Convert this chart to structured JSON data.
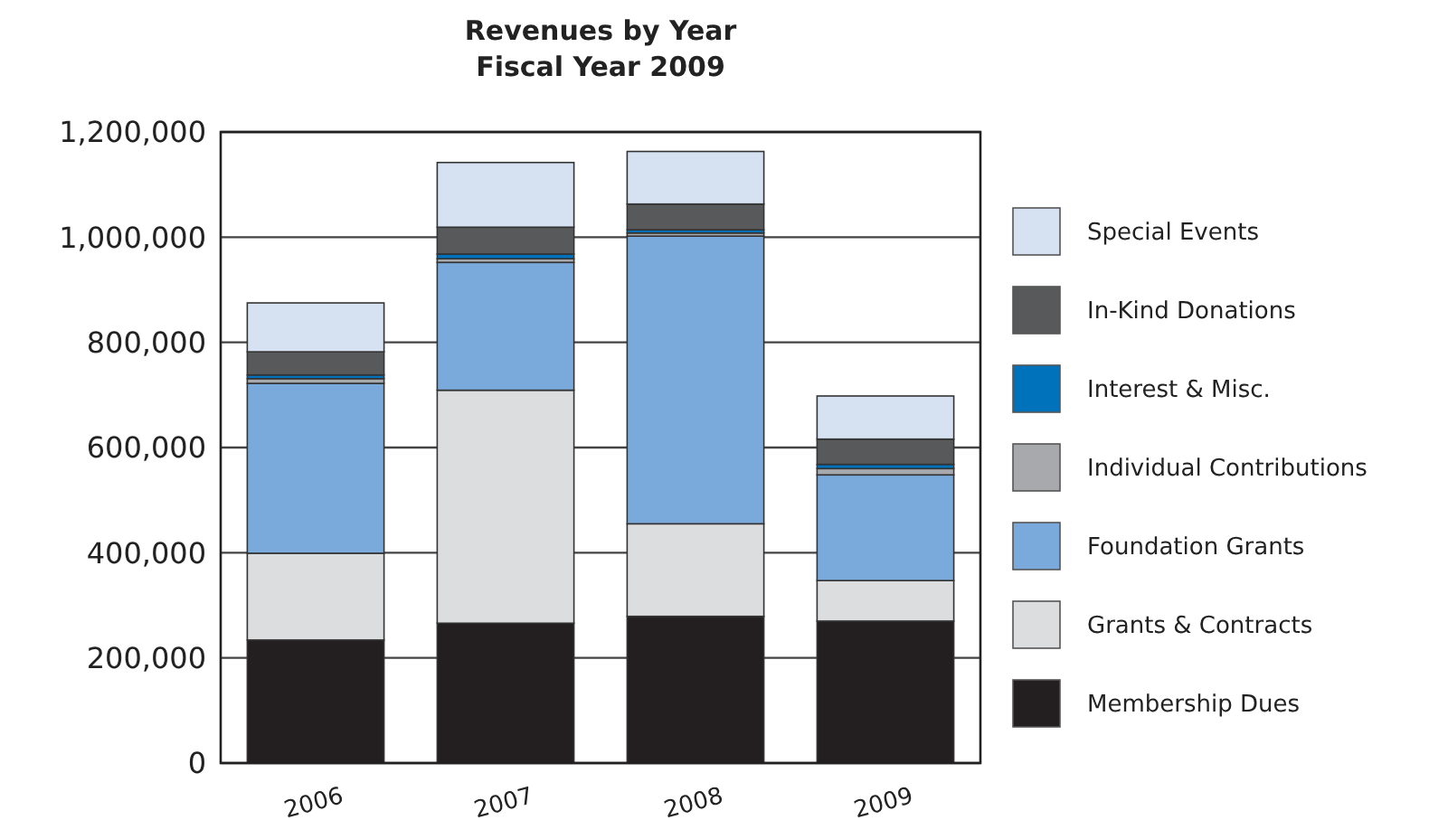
{
  "chart_data": {
    "type": "bar",
    "title": "Revenues by Year\nFiscal Year 2009",
    "categories": [
      "2006",
      "2007",
      "2008",
      "2009"
    ],
    "stacked": true,
    "series": [
      {
        "name": "Membership Dues",
        "color": "#231f20",
        "values": [
          234000,
          266000,
          279000,
          270000
        ]
      },
      {
        "name": "Grants & Contracts",
        "color": "#dcdddf",
        "values": [
          165000,
          443000,
          176000,
          77000
        ]
      },
      {
        "name": "Foundation Grants",
        "color": "#7aaadb",
        "values": [
          323000,
          243000,
          547000,
          201000
        ]
      },
      {
        "name": "Individual Contributions",
        "color": "#a7a9ac",
        "values": [
          9000,
          7000,
          6000,
          12000
        ]
      },
      {
        "name": "Interest & Misc.",
        "color": "#0072bc",
        "values": [
          7000,
          9000,
          6000,
          8000
        ]
      },
      {
        "name": "In-Kind Donations",
        "color": "#58595b",
        "values": [
          44000,
          51000,
          49000,
          48000
        ]
      },
      {
        "name": "Special Events",
        "color": "#d6e2f2",
        "values": [
          93000,
          123000,
          100000,
          82000
        ]
      }
    ],
    "ylim": [
      0,
      1200000
    ],
    "yticks": [
      {
        "value": 0,
        "label": "0"
      },
      {
        "value": 200000,
        "label": "200,000"
      },
      {
        "value": 400000,
        "label": "400,000"
      },
      {
        "value": 600000,
        "label": "600,000"
      },
      {
        "value": 800000,
        "label": "800,000"
      },
      {
        "value": 1000000,
        "label": "1,000,000"
      },
      {
        "value": 1200000,
        "label": "1,200,000"
      }
    ],
    "grid": "y",
    "legend": "right"
  }
}
